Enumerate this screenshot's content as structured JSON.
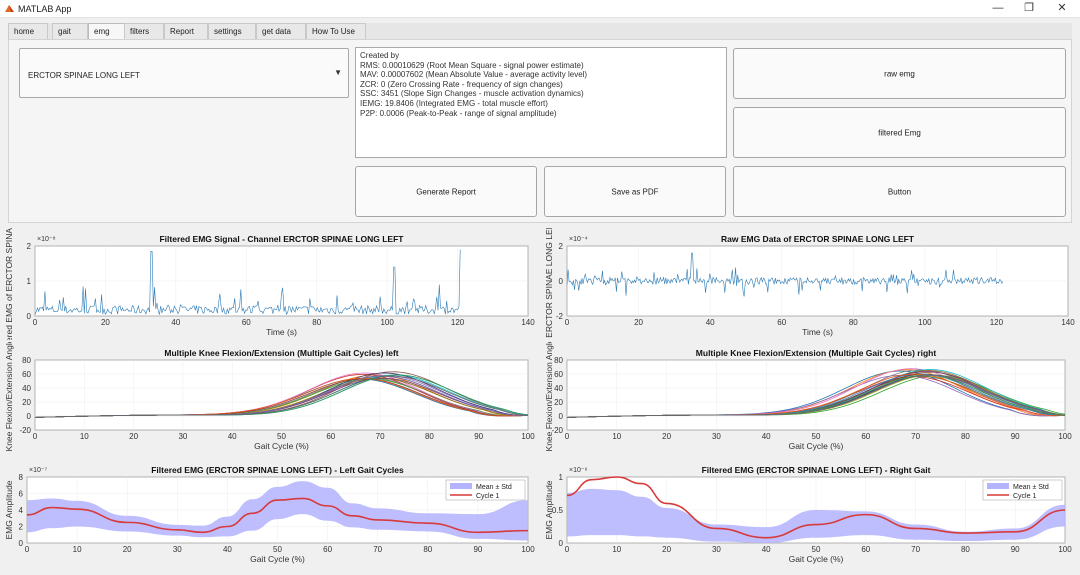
{
  "window": {
    "title": "MATLAB App"
  },
  "tabs": [
    "home",
    "gait",
    "emg",
    "filters",
    "Report",
    "settings",
    "get data",
    "How To Use"
  ],
  "active_tab": "emg",
  "dropdown": {
    "value": "ERCTOR SPINAE LONG LEFT"
  },
  "stats_lines": [
    "Created by",
    "RMS: 0.00010629  (Root Mean Square - signal power estimate)",
    "MAV: 0.00007602  (Mean Absolute Value - average activity level)",
    "ZCR: 0  (Zero Crossing Rate - frequency of sign changes)",
    "SSC: 3451  (Slope Sign Changes - muscle activation dynamics)",
    "IEMG: 19.8406  (Integrated EMG - total muscle effort)",
    "P2P: 0.0006  (Peak-to-Peak - range of signal amplitude)"
  ],
  "buttons": {
    "raw_emg": "raw emg",
    "filtered_emg": "filtered Emg",
    "generate_report": "Generate Report",
    "save_pdf": "Save as PDF",
    "button": "Button"
  },
  "chart_data": [
    {
      "type": "line",
      "title": "Filtered EMG Signal - Channel ERCTOR SPINAE LONG LEFT",
      "xlabel": "Time (s)",
      "ylabel": "Filtered EMG of ERCTOR SPINAE LO",
      "xlim": [
        0,
        140
      ],
      "ylim": [
        0,
        2
      ],
      "exponent": "×10⁻⁸",
      "xticks": [
        0,
        20,
        40,
        60,
        80,
        100,
        120,
        140
      ],
      "yticks": [
        0,
        1,
        2
      ],
      "color": "#2c7bb6"
    },
    {
      "type": "line",
      "title": "Raw EMG Data of ERCTOR SPINAE LONG LEFT",
      "xlabel": "Time (s)",
      "ylabel": "ERCTOR SPINAE LONG LEF",
      "xlim": [
        0,
        140
      ],
      "ylim": [
        -2,
        2
      ],
      "exponent": "×10⁻⁴",
      "xticks": [
        0,
        20,
        40,
        60,
        80,
        100,
        120,
        140
      ],
      "yticks": [
        -2,
        0,
        2
      ],
      "color": "#2c7bb6"
    },
    {
      "type": "line",
      "title": "Multiple Knee Flexion/Extension (Multiple Gait Cycles) left",
      "xlabel": "Gait Cycle (%)",
      "ylabel": "Knee Flexion/Extension Angle",
      "xlim": [
        0,
        100
      ],
      "ylim": [
        -20,
        80
      ],
      "xticks": [
        0,
        10,
        20,
        30,
        40,
        50,
        60,
        70,
        80,
        90,
        100
      ],
      "yticks": [
        -20,
        0,
        20,
        40,
        60,
        80
      ],
      "peak_x": 70,
      "peak_y": 62
    },
    {
      "type": "line",
      "title": "Multiple Knee Flexion/Extension (Multiple Gait Cycles) right",
      "xlabel": "Gait Cycle (%)",
      "ylabel": "Knee Flexion/Extension Angle",
      "xlim": [
        0,
        100
      ],
      "ylim": [
        -20,
        80
      ],
      "xticks": [
        0,
        10,
        20,
        30,
        40,
        50,
        60,
        70,
        80,
        90,
        100
      ],
      "yticks": [
        -20,
        0,
        20,
        40,
        60,
        80
      ],
      "peak_x": 71,
      "peak_y": 66
    },
    {
      "type": "area",
      "title": "Filtered EMG (ERCTOR SPINAE LONG LEFT) - Left Gait Cycles",
      "xlabel": "Gait Cycle (%)",
      "ylabel": "EMG Amplitude",
      "xlim": [
        0,
        100
      ],
      "ylim": [
        0,
        8
      ],
      "exponent": "×10⁻⁷",
      "xticks": [
        0,
        10,
        20,
        30,
        40,
        50,
        60,
        70,
        80,
        90,
        100
      ],
      "yticks": [
        0,
        2,
        4,
        6,
        8
      ],
      "x": [
        0,
        5,
        10,
        20,
        30,
        35,
        40,
        45,
        50,
        55,
        60,
        65,
        70,
        80,
        90,
        100
      ],
      "mean": [
        3.4,
        4.3,
        4.1,
        2.5,
        1.6,
        1.3,
        2.0,
        3.6,
        5.2,
        5.4,
        4.5,
        3.3,
        2.8,
        2.4,
        1.3,
        1.5
      ],
      "upper": [
        5.2,
        5.4,
        5.1,
        3.3,
        2.2,
        2.1,
        3.2,
        5.3,
        6.8,
        7.5,
        6.7,
        4.8,
        4.2,
        3.6,
        3.5,
        5.2
      ],
      "lower": [
        1.3,
        1.8,
        2.0,
        1.4,
        0.9,
        0.7,
        0.8,
        1.5,
        2.9,
        3.5,
        2.7,
        1.9,
        1.6,
        1.4,
        0.5,
        0.3
      ],
      "legend": [
        "Mean ± Std",
        "Cycle 1"
      ]
    },
    {
      "type": "area",
      "title": "Filtered EMG (ERCTOR SPINAE LONG LEFT) - Right Gait",
      "xlabel": "Gait Cycle (%)",
      "ylabel": "EMG Amplitude",
      "xlim": [
        0,
        100
      ],
      "ylim": [
        0,
        1
      ],
      "exponent": "×10⁻⁶",
      "xticks": [
        0,
        10,
        20,
        30,
        40,
        50,
        60,
        70,
        80,
        90,
        100
      ],
      "yticks": [
        0,
        0.5,
        1
      ],
      "x": [
        0,
        5,
        10,
        15,
        20,
        30,
        40,
        50,
        60,
        70,
        80,
        90,
        100
      ],
      "mean": [
        0.72,
        0.96,
        1.0,
        0.9,
        0.6,
        0.22,
        0.08,
        0.28,
        0.43,
        0.22,
        0.15,
        0.17,
        0.5
      ],
      "upper": [
        0.76,
        0.82,
        0.8,
        0.7,
        0.53,
        0.28,
        0.24,
        0.5,
        0.48,
        0.28,
        0.17,
        0.22,
        0.58
      ],
      "lower": [
        0.1,
        0.12,
        0.12,
        0.1,
        0.08,
        0.02,
        0.0,
        0.08,
        0.12,
        0.05,
        0.03,
        0.05,
        0.25
      ],
      "legend": [
        "Mean ± Std",
        "Cycle 1"
      ]
    }
  ],
  "colors": {
    "emg_line": "#2c7bb6",
    "std_fill": "#b3b3ff",
    "mean_line": "#d73a3a"
  }
}
